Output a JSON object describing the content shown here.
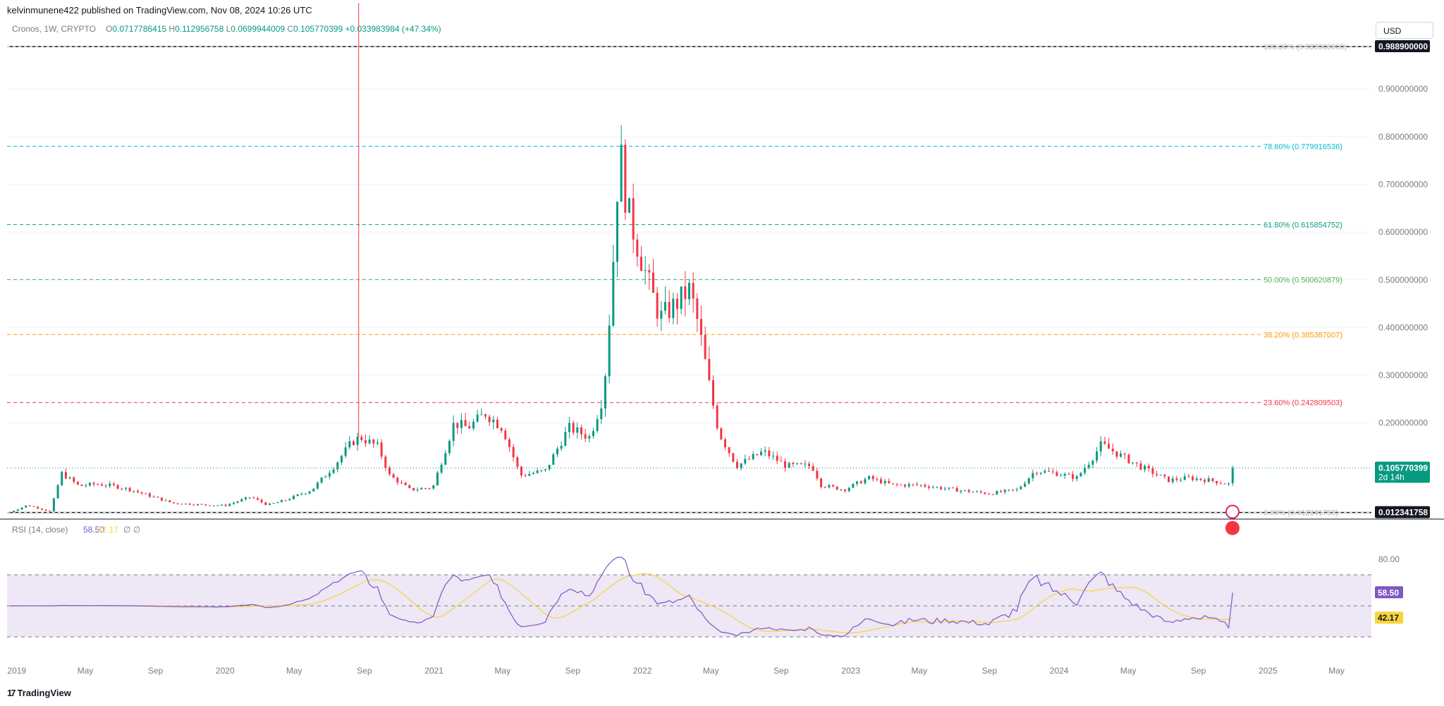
{
  "publisher": "kelvinmunene422 published on TradingView.com, Nov 08, 2024 10:26 UTC",
  "currency_button": "USD",
  "footer_logo": "TradingView",
  "symbol": {
    "name": "Cronos, 1W, CRYPTO",
    "ohlc": [
      {
        "label": "O",
        "value": "0.0717786415"
      },
      {
        "label": "H",
        "value": "0.112956758"
      },
      {
        "label": "L",
        "value": "0.0699944009"
      },
      {
        "label": "C",
        "value": "0.105770399"
      }
    ],
    "change": "+0.033983984 (+47.34%)"
  },
  "rsi_legend": {
    "title": "RSI (14, close)",
    "rsi": "58.50",
    "ma": "42.17",
    "extra": "∅ ∅"
  },
  "colors": {
    "up": "#089981",
    "down": "#f23645",
    "rsi": "#7e57c2",
    "rsi_ma": "#f5d53b",
    "rsi_band": "#ede7f6"
  },
  "price_badges": {
    "high": "0.988900000",
    "low": "0.012341758",
    "last": "0.105770399",
    "countdown": "2d 14h",
    "rsi": "58.50",
    "rsi_ma": "42.17"
  },
  "chart_data": {
    "type": "candlestick",
    "title": "Cronos, 1W, CRYPTO",
    "y_axis": {
      "ticks": [
        "0.900000000",
        "0.800000000",
        "0.700000000",
        "0.600000000",
        "0.500000000",
        "0.400000000",
        "0.300000000",
        "0.200000000"
      ],
      "range": [
        0.0,
        1.02
      ]
    },
    "x_axis": {
      "ticks": [
        "2019",
        "May",
        "Sep",
        "2020",
        "May",
        "Sep",
        "2021",
        "May",
        "Sep",
        "2022",
        "May",
        "Sep",
        "2023",
        "May",
        "Sep",
        "2024",
        "May",
        "Sep",
        "2025",
        "May"
      ],
      "range": [
        "2018-12-15",
        "2025-07-01"
      ]
    },
    "fibonacci": [
      {
        "level": "100.00%",
        "value": "0.988900000",
        "color": "#131722"
      },
      {
        "level": "78.60%",
        "value": "0.779916536",
        "color": "#00bcd4"
      },
      {
        "level": "61.80%",
        "value": "0.615854752",
        "color": "#089981"
      },
      {
        "level": "50.00%",
        "value": "0.500620879",
        "color": "#4caf50"
      },
      {
        "level": "38.20%",
        "value": "0.385387007",
        "color": "#ff9800"
      },
      {
        "level": "23.60%",
        "value": "0.242809503",
        "color": "#f23645"
      },
      {
        "level": "0.00%",
        "value": "0.012341758",
        "color": "#131722"
      }
    ],
    "spike": {
      "date": "2020-08-22",
      "high": 1.08
    },
    "anchors": [
      [
        "2018-12-20",
        0.013
      ],
      [
        "2019-01-20",
        0.028
      ],
      [
        "2019-03-01",
        0.014
      ],
      [
        "2019-03-20",
        0.095
      ],
      [
        "2019-04-20",
        0.068
      ],
      [
        "2019-05-20",
        0.072
      ],
      [
        "2019-06-20",
        0.068
      ],
      [
        "2019-07-20",
        0.06
      ],
      [
        "2019-08-20",
        0.048
      ],
      [
        "2019-10-01",
        0.032
      ],
      [
        "2019-12-01",
        0.028
      ],
      [
        "2020-01-01",
        0.027
      ],
      [
        "2020-02-15",
        0.045
      ],
      [
        "2020-03-15",
        0.028
      ],
      [
        "2020-04-15",
        0.038
      ],
      [
        "2020-06-01",
        0.06
      ],
      [
        "2020-07-10",
        0.11
      ],
      [
        "2020-08-10",
        0.16
      ],
      [
        "2020-08-25",
        0.17
      ],
      [
        "2020-09-25",
        0.15
      ],
      [
        "2020-10-15",
        0.09
      ],
      [
        "2020-11-20",
        0.06
      ],
      [
        "2020-12-30",
        0.065
      ],
      [
        "2021-02-05",
        0.2
      ],
      [
        "2021-03-01",
        0.19
      ],
      [
        "2021-04-01",
        0.22
      ],
      [
        "2021-05-01",
        0.19
      ],
      [
        "2021-06-01",
        0.09
      ],
      [
        "2021-07-15",
        0.1
      ],
      [
        "2021-08-25",
        0.19
      ],
      [
        "2021-10-01",
        0.17
      ],
      [
        "2021-10-25",
        0.26
      ],
      [
        "2021-11-08",
        0.48
      ],
      [
        "2021-11-22",
        0.78
      ],
      [
        "2021-12-05",
        0.65
      ],
      [
        "2022-01-10",
        0.5
      ],
      [
        "2022-02-01",
        0.42
      ],
      [
        "2022-03-01",
        0.45
      ],
      [
        "2022-03-25",
        0.48
      ],
      [
        "2022-04-10",
        0.4
      ],
      [
        "2022-05-01",
        0.26
      ],
      [
        "2022-05-15",
        0.18
      ],
      [
        "2022-06-15",
        0.11
      ],
      [
        "2022-08-01",
        0.14
      ],
      [
        "2022-09-10",
        0.11
      ],
      [
        "2022-10-25",
        0.11
      ],
      [
        "2022-11-10",
        0.07
      ],
      [
        "2022-12-20",
        0.06
      ],
      [
        "2023-02-01",
        0.085
      ],
      [
        "2023-03-15",
        0.07
      ],
      [
        "2023-05-01",
        0.07
      ],
      [
        "2023-07-01",
        0.06
      ],
      [
        "2023-09-01",
        0.052
      ],
      [
        "2023-10-20",
        0.06
      ],
      [
        "2023-11-20",
        0.1
      ],
      [
        "2023-12-25",
        0.095
      ],
      [
        "2024-02-01",
        0.085
      ],
      [
        "2024-03-01",
        0.13
      ],
      [
        "2024-03-15",
        0.155
      ],
      [
        "2024-04-20",
        0.13
      ],
      [
        "2024-05-20",
        0.11
      ],
      [
        "2024-07-10",
        0.08
      ],
      [
        "2024-08-15",
        0.085
      ],
      [
        "2024-09-20",
        0.08
      ],
      [
        "2024-10-25",
        0.072
      ],
      [
        "2024-11-06",
        0.1058
      ]
    ],
    "rsi_panel": {
      "levels": [
        "80.00"
      ],
      "rsi_last": "58.50",
      "ma_last": "42.17"
    }
  }
}
